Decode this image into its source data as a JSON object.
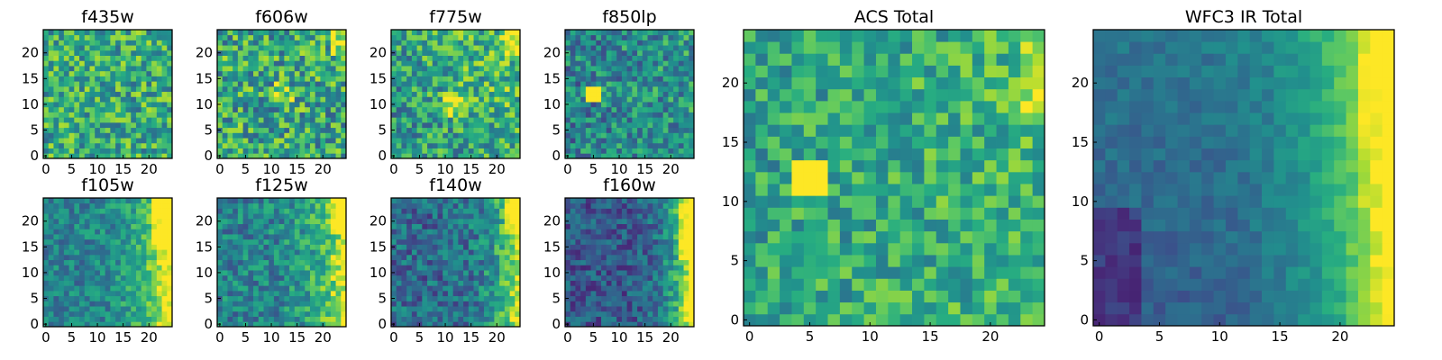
{
  "chart_data": {
    "type": "heatmap",
    "colormap": "viridis",
    "grid": false,
    "panels": [
      {
        "title": "f435w",
        "xlim": [
          0,
          24
        ],
        "ylim": [
          0,
          24
        ],
        "xticks": [
          0,
          5,
          10,
          15,
          20
        ],
        "yticks": [
          0,
          5,
          10,
          15,
          20
        ],
        "trend": "uniform high-noise field, mostly green-yellow"
      },
      {
        "title": "f606w",
        "xlim": [
          0,
          24
        ],
        "ylim": [
          0,
          24
        ],
        "xticks": [
          0,
          5,
          10,
          15,
          20
        ],
        "yticks": [
          0,
          5,
          10,
          15,
          20
        ],
        "trend": "noisy field with bright spot near x=12,y=12 and top-right corner"
      },
      {
        "title": "f775w",
        "xlim": [
          0,
          24
        ],
        "ylim": [
          0,
          24
        ],
        "xticks": [
          0,
          5,
          10,
          15,
          20
        ],
        "yticks": [
          0,
          5,
          10,
          15,
          20
        ],
        "trend": "noisy field brightening toward top-right, bright spot near center"
      },
      {
        "title": "f850lp",
        "xlim": [
          0,
          24
        ],
        "ylim": [
          0,
          24
        ],
        "xticks": [
          0,
          5,
          10,
          15,
          20
        ],
        "yticks": [
          0,
          5,
          10,
          15,
          20
        ],
        "trend": "darker field with bright blob near x=5,y=12"
      },
      {
        "title": "f105w",
        "xlim": [
          0,
          24
        ],
        "ylim": [
          0,
          24
        ],
        "xticks": [
          0,
          5,
          10,
          15,
          20
        ],
        "yticks": [
          0,
          5,
          10,
          15,
          20
        ],
        "trend": "smooth gradient brightening to right edge, yellow at x>20,y>15"
      },
      {
        "title": "f125w",
        "xlim": [
          0,
          24
        ],
        "ylim": [
          0,
          24
        ],
        "xticks": [
          0,
          5,
          10,
          15,
          20
        ],
        "yticks": [
          0,
          5,
          10,
          15,
          20
        ],
        "trend": "gradient brightening to upper-right edge"
      },
      {
        "title": "f140w",
        "xlim": [
          0,
          24
        ],
        "ylim": [
          0,
          24
        ],
        "xticks": [
          0,
          5,
          10,
          15,
          20
        ],
        "yticks": [
          0,
          5,
          10,
          15,
          20
        ],
        "trend": "darker field, bright at right edge top"
      },
      {
        "title": "f160w",
        "xlim": [
          0,
          24
        ],
        "ylim": [
          0,
          24
        ],
        "xticks": [
          0,
          5,
          10,
          15,
          20
        ],
        "yticks": [
          0,
          5,
          10,
          15,
          20
        ],
        "trend": "dark blue field, bright yellow along right edge"
      },
      {
        "title": "ACS Total",
        "xlim": [
          0,
          24
        ],
        "ylim": [
          0,
          24
        ],
        "xticks": [
          0,
          5,
          10,
          15,
          20
        ],
        "yticks": [
          0,
          5,
          10,
          15,
          20
        ],
        "trend": "green noisy field, yellow blob near x=5,y=12, brighter at right"
      },
      {
        "title": "WFC3 IR Total",
        "xlim": [
          0,
          24
        ],
        "ylim": [
          0,
          24
        ],
        "xticks": [
          0,
          5,
          10,
          15,
          20
        ],
        "yticks": [
          0,
          5,
          10,
          15,
          20
        ],
        "trend": "smooth gradient from dark lower-left to bright yellow right edge"
      }
    ]
  }
}
